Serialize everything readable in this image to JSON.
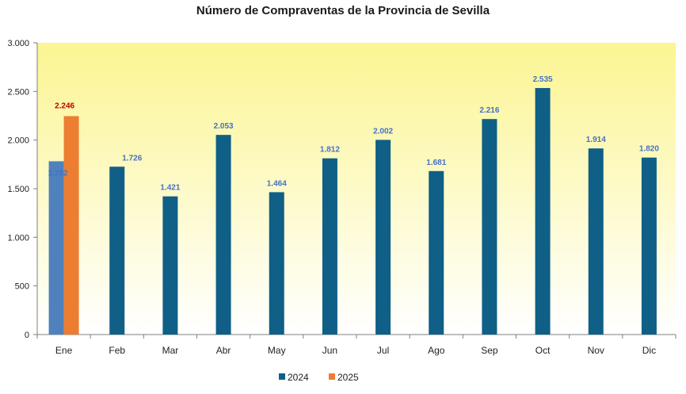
{
  "chart_data": {
    "type": "bar",
    "title": "Número de Compraventas de la Provincia de Sevilla",
    "categories": [
      "Ene",
      "Feb",
      "Mar",
      "Abr",
      "May",
      "Jun",
      "Jul",
      "Ago",
      "Sep",
      "Oct",
      "Nov",
      "Dic"
    ],
    "series": [
      {
        "name": "2024",
        "values": [
          1782,
          1726,
          1421,
          2053,
          1464,
          1812,
          2002,
          1681,
          2216,
          2535,
          1914,
          1820
        ],
        "labels": [
          "1.782",
          "1.726",
          "1.421",
          "2.053",
          "1.464",
          "1.812",
          "2.002",
          "1.681",
          "2.216",
          "2.535",
          "1.914",
          "1.820"
        ]
      },
      {
        "name": "2025",
        "values": [
          2246,
          null,
          null,
          null,
          null,
          null,
          null,
          null,
          null,
          null,
          null,
          null
        ],
        "labels": [
          "2.246",
          "",
          "",
          "",
          "",
          "",
          "",
          "",
          "",
          "",
          "",
          ""
        ]
      }
    ],
    "yticks": [
      0,
      500,
      1000,
      1500,
      2000,
      2500,
      3000
    ],
    "ytick_labels": [
      "0",
      "500",
      "1.000",
      "1.500",
      "2.000",
      "2.500",
      "3.000"
    ],
    "ylim": [
      0,
      3000
    ],
    "xlabel": "",
    "ylabel": "",
    "legend": "bottom-center",
    "colors": {
      "series_2024": "#0f5f86",
      "series_2024_first": "#4f81bd",
      "series_2025": "#ed7d31",
      "label_2024": "#4472c4",
      "label_2025": "#c00000",
      "bg_top": "#fbf592",
      "bg_bottom": "#ffffff"
    }
  }
}
